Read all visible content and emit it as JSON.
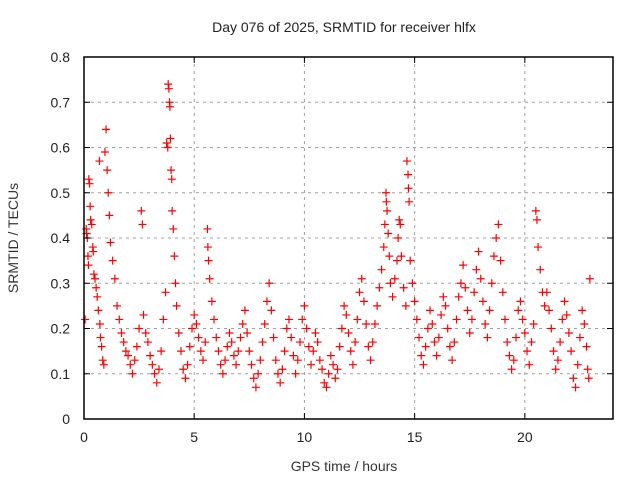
{
  "chart_data": {
    "type": "scatter",
    "title": "Day 076 of 2025, SRMTID for receiver hlfx",
    "xlabel": "GPS time / hours",
    "ylabel": "SRMTID / TECUs",
    "xlim": [
      0,
      24
    ],
    "ylim": [
      0,
      0.8
    ],
    "xticks": [
      0,
      5,
      10,
      15,
      20
    ],
    "xtick_labels": [
      "0",
      "5",
      "10",
      "15",
      "20"
    ],
    "yticks": [
      0,
      0.1,
      0.2,
      0.3,
      0.4,
      0.5,
      0.6,
      0.7,
      0.8
    ],
    "ytick_labels": [
      "0",
      "0.1",
      "0.2",
      "0.3",
      "0.4",
      "0.5",
      "0.6",
      "0.7",
      "0.8"
    ],
    "grid": true,
    "legend": "none",
    "marker": "plus",
    "marker_color": "#ff0000",
    "series": [
      {
        "name": "SRMTID",
        "points": [
          [
            0.05,
            0.22
          ],
          [
            0.1,
            0.42
          ],
          [
            0.12,
            0.41
          ],
          [
            0.15,
            0.4
          ],
          [
            0.18,
            0.36
          ],
          [
            0.2,
            0.34
          ],
          [
            0.22,
            0.53
          ],
          [
            0.25,
            0.52
          ],
          [
            0.28,
            0.47
          ],
          [
            0.3,
            0.44
          ],
          [
            0.35,
            0.43
          ],
          [
            0.4,
            0.38
          ],
          [
            0.42,
            0.37
          ],
          [
            0.45,
            0.32
          ],
          [
            0.5,
            0.31
          ],
          [
            0.55,
            0.29
          ],
          [
            0.6,
            0.27
          ],
          [
            0.65,
            0.24
          ],
          [
            0.7,
            0.57
          ],
          [
            0.72,
            0.21
          ],
          [
            0.75,
            0.18
          ],
          [
            0.8,
            0.16
          ],
          [
            0.85,
            0.13
          ],
          [
            0.9,
            0.12
          ],
          [
            0.95,
            0.59
          ],
          [
            1.0,
            0.64
          ],
          [
            1.05,
            0.55
          ],
          [
            1.1,
            0.5
          ],
          [
            1.15,
            0.45
          ],
          [
            1.2,
            0.39
          ],
          [
            1.3,
            0.35
          ],
          [
            1.4,
            0.31
          ],
          [
            1.5,
            0.25
          ],
          [
            1.6,
            0.22
          ],
          [
            1.7,
            0.19
          ],
          [
            1.8,
            0.17
          ],
          [
            1.9,
            0.15
          ],
          [
            2.0,
            0.14
          ],
          [
            2.1,
            0.12
          ],
          [
            2.2,
            0.1
          ],
          [
            2.3,
            0.13
          ],
          [
            2.4,
            0.16
          ],
          [
            2.5,
            0.2
          ],
          [
            2.6,
            0.46
          ],
          [
            2.65,
            0.43
          ],
          [
            2.7,
            0.23
          ],
          [
            2.8,
            0.19
          ],
          [
            2.9,
            0.17
          ],
          [
            3.0,
            0.14
          ],
          [
            3.1,
            0.12
          ],
          [
            3.2,
            0.1
          ],
          [
            3.3,
            0.08
          ],
          [
            3.4,
            0.11
          ],
          [
            3.5,
            0.15
          ],
          [
            3.6,
            0.22
          ],
          [
            3.7,
            0.28
          ],
          [
            3.75,
            0.61
          ],
          [
            3.8,
            0.6
          ],
          [
            3.82,
            0.74
          ],
          [
            3.85,
            0.73
          ],
          [
            3.88,
            0.7
          ],
          [
            3.9,
            0.69
          ],
          [
            3.92,
            0.62
          ],
          [
            3.95,
            0.55
          ],
          [
            3.98,
            0.53
          ],
          [
            4.0,
            0.46
          ],
          [
            4.05,
            0.42
          ],
          [
            4.1,
            0.36
          ],
          [
            4.15,
            0.3
          ],
          [
            4.2,
            0.25
          ],
          [
            4.3,
            0.19
          ],
          [
            4.4,
            0.15
          ],
          [
            4.5,
            0.11
          ],
          [
            4.6,
            0.09
          ],
          [
            4.7,
            0.12
          ],
          [
            4.8,
            0.16
          ],
          [
            4.9,
            0.2
          ],
          [
            5.0,
            0.23
          ],
          [
            5.1,
            0.21
          ],
          [
            5.2,
            0.18
          ],
          [
            5.3,
            0.15
          ],
          [
            5.4,
            0.13
          ],
          [
            5.5,
            0.17
          ],
          [
            5.6,
            0.42
          ],
          [
            5.62,
            0.38
          ],
          [
            5.65,
            0.35
          ],
          [
            5.7,
            0.31
          ],
          [
            5.8,
            0.26
          ],
          [
            5.9,
            0.22
          ],
          [
            6.0,
            0.18
          ],
          [
            6.1,
            0.15
          ],
          [
            6.2,
            0.12
          ],
          [
            6.3,
            0.1
          ],
          [
            6.4,
            0.13
          ],
          [
            6.5,
            0.16
          ],
          [
            6.6,
            0.19
          ],
          [
            6.7,
            0.17
          ],
          [
            6.8,
            0.14
          ],
          [
            6.9,
            0.12
          ],
          [
            7.0,
            0.15
          ],
          [
            7.1,
            0.18
          ],
          [
            7.2,
            0.21
          ],
          [
            7.3,
            0.24
          ],
          [
            7.4,
            0.19
          ],
          [
            7.5,
            0.15
          ],
          [
            7.6,
            0.12
          ],
          [
            7.7,
            0.09
          ],
          [
            7.8,
            0.07
          ],
          [
            7.9,
            0.1
          ],
          [
            8.0,
            0.13
          ],
          [
            8.1,
            0.17
          ],
          [
            8.2,
            0.21
          ],
          [
            8.3,
            0.26
          ],
          [
            8.4,
            0.3
          ],
          [
            8.5,
            0.24
          ],
          [
            8.6,
            0.18
          ],
          [
            8.7,
            0.13
          ],
          [
            8.8,
            0.1
          ],
          [
            8.9,
            0.08
          ],
          [
            9.0,
            0.11
          ],
          [
            9.1,
            0.15
          ],
          [
            9.2,
            0.2
          ],
          [
            9.3,
            0.22
          ],
          [
            9.4,
            0.18
          ],
          [
            9.5,
            0.14
          ],
          [
            9.6,
            0.1
          ],
          [
            9.7,
            0.13
          ],
          [
            9.8,
            0.17
          ],
          [
            9.9,
            0.22
          ],
          [
            10.0,
            0.25
          ],
          [
            10.1,
            0.2
          ],
          [
            10.2,
            0.16
          ],
          [
            10.3,
            0.12
          ],
          [
            10.4,
            0.15
          ],
          [
            10.5,
            0.19
          ],
          [
            10.6,
            0.17
          ],
          [
            10.7,
            0.13
          ],
          [
            10.8,
            0.11
          ],
          [
            10.9,
            0.08
          ],
          [
            11.0,
            0.07
          ],
          [
            11.1,
            0.1
          ],
          [
            11.2,
            0.14
          ],
          [
            11.3,
            0.12
          ],
          [
            11.4,
            0.09
          ],
          [
            11.5,
            0.11
          ],
          [
            11.6,
            0.16
          ],
          [
            11.7,
            0.2
          ],
          [
            11.8,
            0.25
          ],
          [
            11.9,
            0.23
          ],
          [
            12.0,
            0.19
          ],
          [
            12.1,
            0.15
          ],
          [
            12.2,
            0.12
          ],
          [
            12.3,
            0.17
          ],
          [
            12.4,
            0.22
          ],
          [
            12.5,
            0.28
          ],
          [
            12.6,
            0.31
          ],
          [
            12.7,
            0.26
          ],
          [
            12.8,
            0.21
          ],
          [
            12.9,
            0.16
          ],
          [
            13.0,
            0.13
          ],
          [
            13.1,
            0.17
          ],
          [
            13.2,
            0.21
          ],
          [
            13.3,
            0.25
          ],
          [
            13.4,
            0.29
          ],
          [
            13.5,
            0.33
          ],
          [
            13.6,
            0.38
          ],
          [
            13.65,
            0.43
          ],
          [
            13.7,
            0.5
          ],
          [
            13.72,
            0.48
          ],
          [
            13.75,
            0.46
          ],
          [
            13.8,
            0.41
          ],
          [
            13.85,
            0.36
          ],
          [
            13.9,
            0.3
          ],
          [
            14.0,
            0.27
          ],
          [
            14.1,
            0.31
          ],
          [
            14.2,
            0.35
          ],
          [
            14.25,
            0.4
          ],
          [
            14.3,
            0.44
          ],
          [
            14.35,
            0.43
          ],
          [
            14.4,
            0.36
          ],
          [
            14.5,
            0.29
          ],
          [
            14.6,
            0.25
          ],
          [
            14.65,
            0.57
          ],
          [
            14.7,
            0.54
          ],
          [
            14.72,
            0.51
          ],
          [
            14.75,
            0.48
          ],
          [
            14.8,
            0.35
          ],
          [
            14.9,
            0.3
          ],
          [
            15.0,
            0.26
          ],
          [
            15.1,
            0.22
          ],
          [
            15.2,
            0.18
          ],
          [
            15.3,
            0.14
          ],
          [
            15.4,
            0.12
          ],
          [
            15.5,
            0.16
          ],
          [
            15.6,
            0.2
          ],
          [
            15.7,
            0.24
          ],
          [
            15.8,
            0.21
          ],
          [
            15.9,
            0.17
          ],
          [
            16.0,
            0.14
          ],
          [
            16.1,
            0.18
          ],
          [
            16.2,
            0.23
          ],
          [
            16.3,
            0.27
          ],
          [
            16.4,
            0.25
          ],
          [
            16.5,
            0.2
          ],
          [
            16.6,
            0.16
          ],
          [
            16.7,
            0.13
          ],
          [
            16.8,
            0.17
          ],
          [
            16.9,
            0.22
          ],
          [
            17.0,
            0.27
          ],
          [
            17.1,
            0.3
          ],
          [
            17.2,
            0.34
          ],
          [
            17.3,
            0.29
          ],
          [
            17.4,
            0.24
          ],
          [
            17.5,
            0.19
          ],
          [
            17.6,
            0.22
          ],
          [
            17.7,
            0.28
          ],
          [
            17.8,
            0.33
          ],
          [
            17.9,
            0.37
          ],
          [
            18.0,
            0.31
          ],
          [
            18.1,
            0.26
          ],
          [
            18.2,
            0.21
          ],
          [
            18.3,
            0.18
          ],
          [
            18.4,
            0.24
          ],
          [
            18.5,
            0.3
          ],
          [
            18.6,
            0.36
          ],
          [
            18.7,
            0.4
          ],
          [
            18.8,
            0.43
          ],
          [
            18.9,
            0.35
          ],
          [
            19.0,
            0.28
          ],
          [
            19.1,
            0.22
          ],
          [
            19.2,
            0.17
          ],
          [
            19.3,
            0.14
          ],
          [
            19.4,
            0.11
          ],
          [
            19.5,
            0.13
          ],
          [
            19.6,
            0.18
          ],
          [
            19.7,
            0.24
          ],
          [
            19.8,
            0.26
          ],
          [
            19.9,
            0.22
          ],
          [
            20.0,
            0.19
          ],
          [
            20.1,
            0.15
          ],
          [
            20.2,
            0.12
          ],
          [
            20.3,
            0.17
          ],
          [
            20.4,
            0.21
          ],
          [
            20.5,
            0.46
          ],
          [
            20.55,
            0.44
          ],
          [
            20.6,
            0.38
          ],
          [
            20.7,
            0.33
          ],
          [
            20.8,
            0.28
          ],
          [
            20.9,
            0.25
          ],
          [
            21.0,
            0.28
          ],
          [
            21.1,
            0.24
          ],
          [
            21.2,
            0.2
          ],
          [
            21.3,
            0.15
          ],
          [
            21.4,
            0.11
          ],
          [
            21.5,
            0.13
          ],
          [
            21.6,
            0.17
          ],
          [
            21.7,
            0.22
          ],
          [
            21.8,
            0.26
          ],
          [
            21.9,
            0.23
          ],
          [
            22.0,
            0.19
          ],
          [
            22.1,
            0.15
          ],
          [
            22.2,
            0.09
          ],
          [
            22.3,
            0.07
          ],
          [
            22.4,
            0.12
          ],
          [
            22.5,
            0.18
          ],
          [
            22.6,
            0.24
          ],
          [
            22.7,
            0.21
          ],
          [
            22.8,
            0.16
          ],
          [
            22.85,
            0.11
          ],
          [
            22.9,
            0.09
          ],
          [
            22.95,
            0.31
          ]
        ]
      }
    ]
  }
}
